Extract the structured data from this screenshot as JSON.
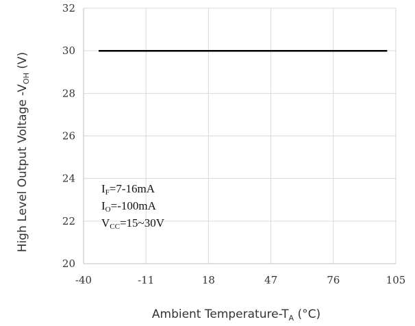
{
  "chart_data": {
    "type": "line",
    "x": [
      -33,
      101
    ],
    "series": [
      {
        "values": [
          30,
          30
        ],
        "color": "#000000"
      }
    ],
    "xlim": [
      -40,
      105
    ],
    "ylim": [
      20,
      32
    ],
    "xticks": [
      "-40",
      "-11",
      "18",
      "47",
      "76",
      "105"
    ],
    "yticks": [
      "20",
      "22",
      "24",
      "26",
      "28",
      "30",
      "32"
    ],
    "grid": true,
    "xlabel": {
      "text": "Ambient Temperature-T",
      "sub": "A",
      "suffix": " (°C)"
    },
    "ylabel": {
      "text": "High Level Output Voltage -V",
      "sub": "OH",
      "suffix": " (V)"
    },
    "annotations": [
      {
        "main": "I",
        "sub": "F",
        "rest": "=7-16mA"
      },
      {
        "main": "I",
        "sub": "O",
        "rest": "=-100mA"
      },
      {
        "main": "V",
        "sub": "CC",
        "rest": "=15~30V"
      }
    ]
  }
}
